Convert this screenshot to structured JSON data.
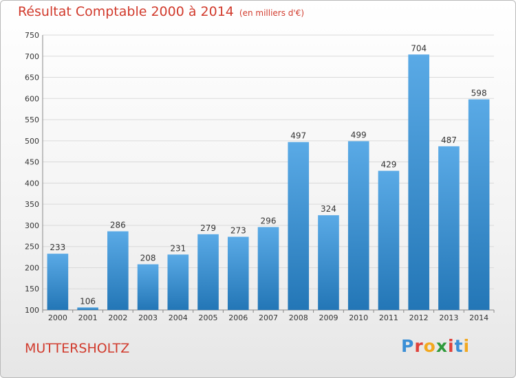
{
  "title": "Résultat Comptable 2000 à 2014",
  "subtitle": "(en milliers d'€)",
  "commune": "MUTTERSHOLTZ",
  "logo": [
    "P",
    "r",
    "o",
    "x",
    "i",
    "t",
    "i"
  ],
  "colors": {
    "title": "#d13a2c",
    "bar_top": "#5aaae6",
    "bar_bottom": "#2376b6",
    "logo": [
      "#3a8fd6",
      "#e0413a",
      "#f2a81f",
      "#2f9a3b",
      "#e0413a",
      "#3a8fd6",
      "#f2a81f"
    ]
  },
  "chart_data": {
    "type": "bar",
    "categories": [
      "2000",
      "2001",
      "2002",
      "2003",
      "2004",
      "2005",
      "2006",
      "2007",
      "2008",
      "2009",
      "2010",
      "2011",
      "2012",
      "2013",
      "2014"
    ],
    "values": [
      233,
      106,
      286,
      208,
      231,
      279,
      273,
      296,
      497,
      324,
      499,
      429,
      704,
      487,
      598
    ],
    "ylim": [
      100,
      750
    ],
    "yticks": [
      100,
      150,
      200,
      250,
      300,
      350,
      400,
      450,
      500,
      550,
      600,
      650,
      700,
      750
    ],
    "grid": true
  }
}
